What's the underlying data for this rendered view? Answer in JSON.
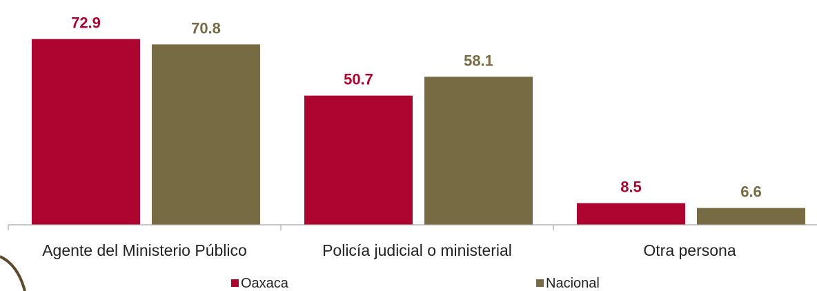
{
  "chart_data": {
    "type": "bar",
    "categories": [
      "Agente del Ministerio Público",
      "Policía judicial o ministerial",
      "Otra persona"
    ],
    "series": [
      {
        "name": "Oaxaca",
        "values": [
          72.9,
          50.7,
          8.5
        ],
        "color": "#AE0530"
      },
      {
        "name": "Nacional",
        "values": [
          70.8,
          58.1,
          6.6
        ],
        "color": "#766B43"
      }
    ],
    "ylim": [
      0,
      80
    ],
    "grid": false,
    "data_labels": true,
    "legend_position": "bottom"
  },
  "colors": {
    "axis": "#A6A6A6",
    "decoration_arc": "#5A4A2A"
  }
}
